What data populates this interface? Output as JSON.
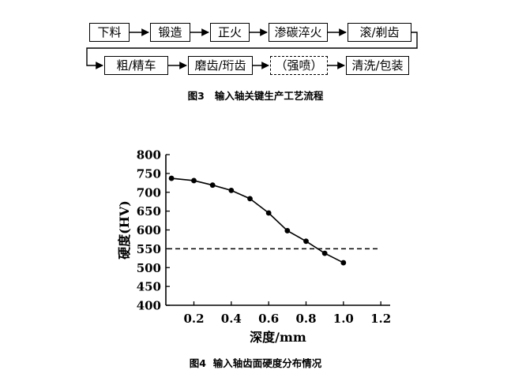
{
  "figure3": {
    "caption": "图3   输入轴关键生产工艺流程",
    "steps_row1": [
      "下料",
      "锻造",
      "正火",
      "渗碳淬火",
      "滚/剃齿"
    ],
    "steps_row2": [
      "粗/精车",
      "磨齿/珩齿",
      "（强喷）",
      "清洗/包装"
    ]
  },
  "figure4": {
    "caption": "图4  输入轴齿面硬度分布情况"
  },
  "chart_data": {
    "type": "line",
    "xlabel": "深度/mm",
    "ylabel": "硬度(HV)",
    "xlim": [
      0.05,
      1.25
    ],
    "ylim": [
      400,
      800
    ],
    "xticks": [
      "0.2",
      "0.4",
      "0.6",
      "0.8",
      "1.0",
      "1.2"
    ],
    "yticks": [
      "400",
      "450",
      "500",
      "550",
      "600",
      "650",
      "700",
      "750",
      "800"
    ],
    "series": [
      {
        "x": [
          0.08,
          0.2,
          0.3,
          0.4,
          0.5,
          0.6,
          0.7,
          0.8,
          0.9,
          1.0
        ],
        "values": [
          737,
          731,
          719,
          705,
          683,
          645,
          598,
          570,
          538,
          513
        ]
      }
    ],
    "reference_line": {
      "y": 550,
      "style": "dashed"
    },
    "grid": false,
    "legend": "none"
  }
}
